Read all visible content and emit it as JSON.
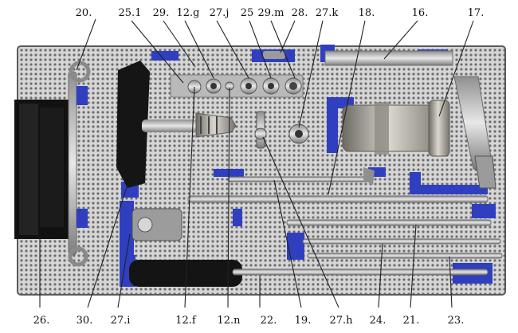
{
  "figure": {
    "top_labels": [
      "20.",
      "25.1",
      "29.",
      "12.g",
      "27.j",
      "25",
      "29.m",
      "28.",
      "27.k",
      "18.",
      "16.",
      "17."
    ],
    "bottom_labels": [
      "26.",
      "30.",
      "27.i",
      "12.f",
      "12.n",
      "22.",
      "19.",
      "27.h",
      "24.",
      "21.",
      "23."
    ]
  },
  "colors": {
    "tray": "#cfcfcf",
    "tray_holes": "#6f6f6f",
    "bracket_blue": "#2f3fc0",
    "steel": "#bdbdbd",
    "handle_black": "#161616",
    "leader": "#222222"
  }
}
